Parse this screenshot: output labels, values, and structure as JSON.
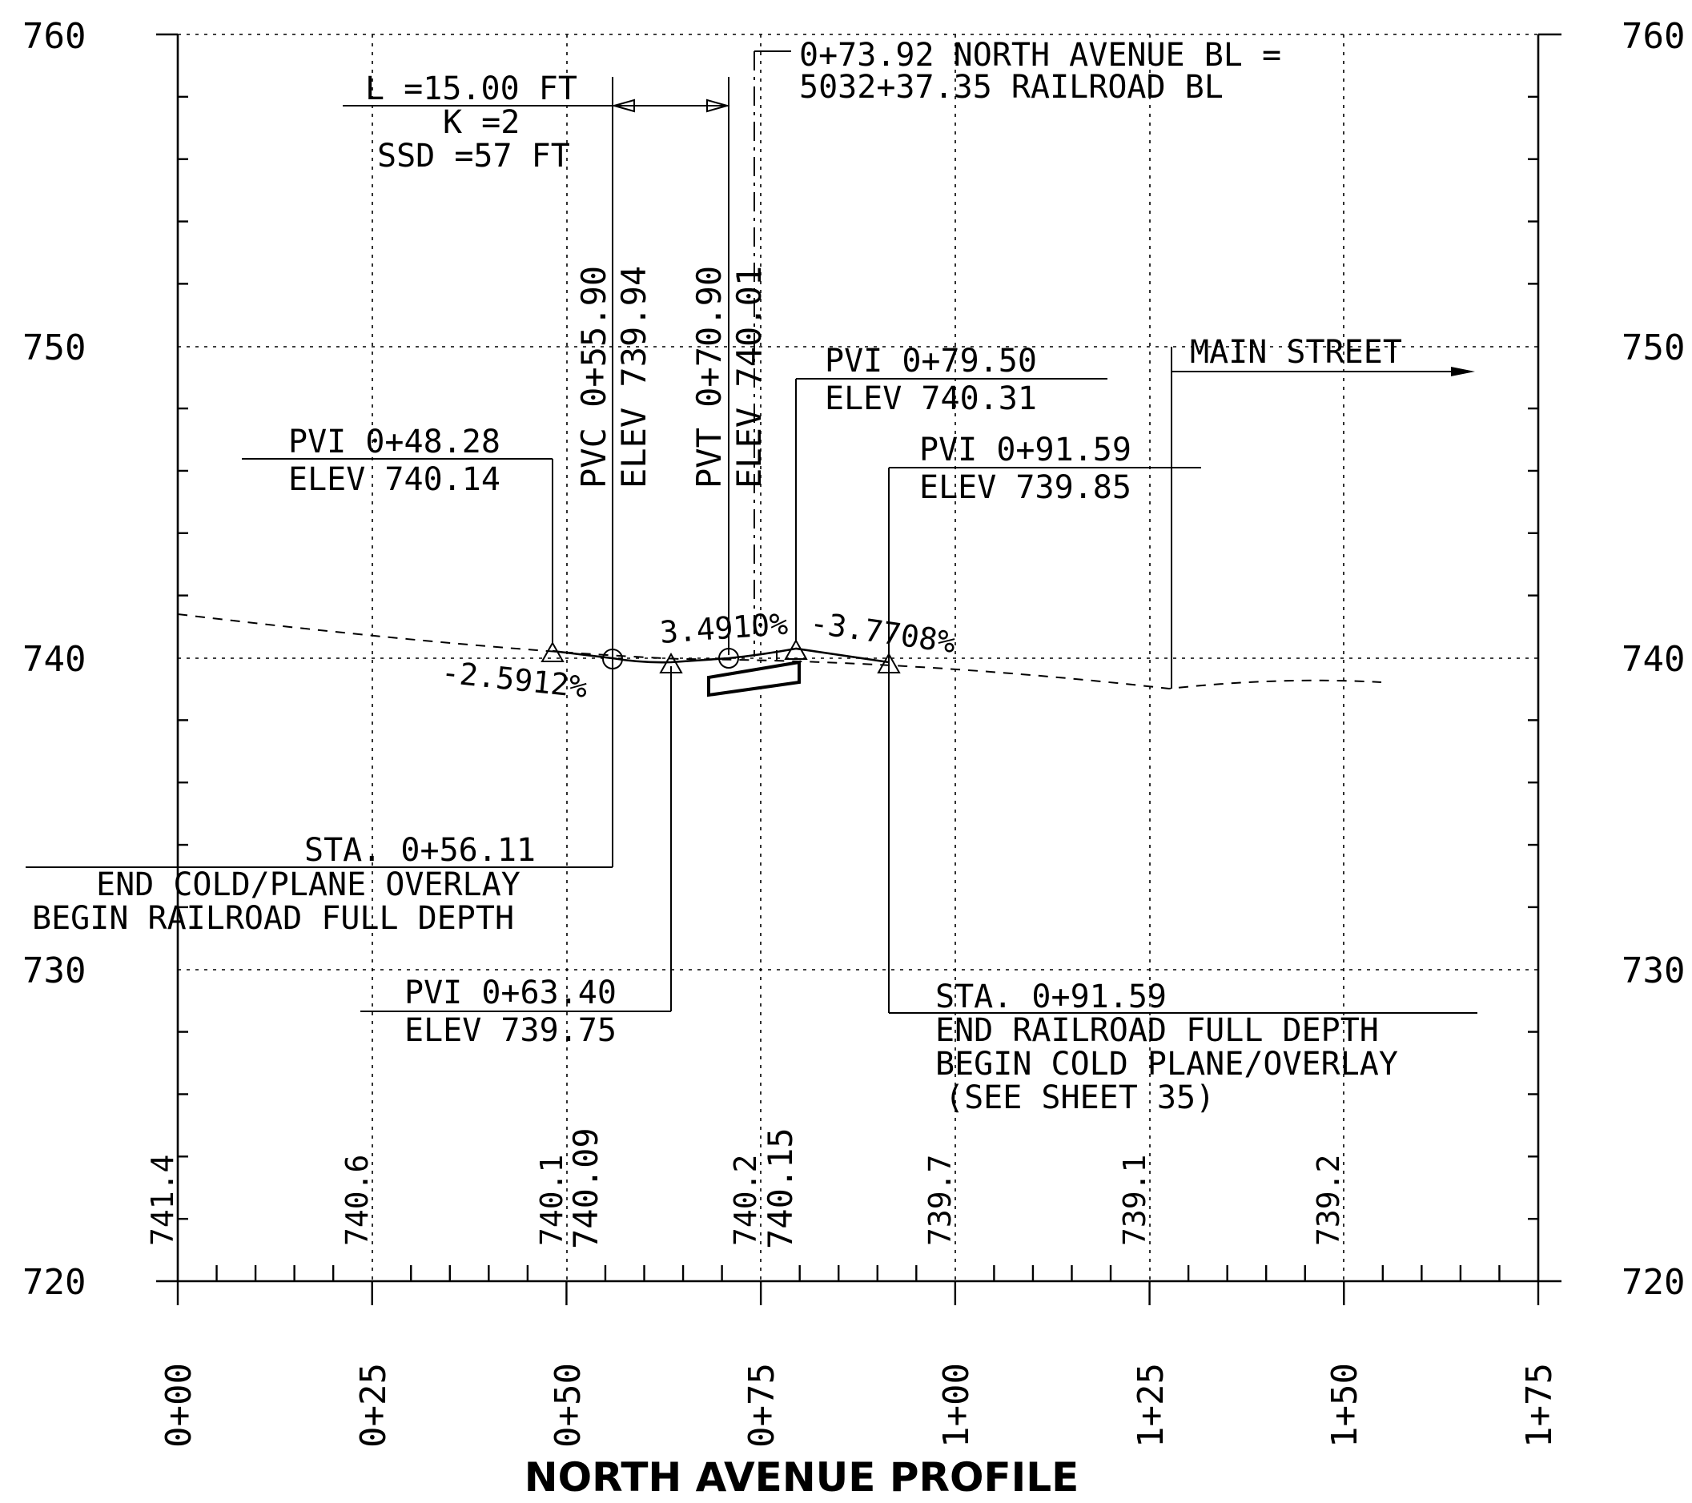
{
  "title": "NORTH AVENUE PROFILE",
  "y_axis": {
    "left_labels": [
      "760",
      "750",
      "740",
      "730",
      "720"
    ],
    "right_labels": [
      "760",
      "750",
      "740",
      "730",
      "720"
    ]
  },
  "x_axis": {
    "station_labels": [
      "0+00",
      "0+25",
      "0+50",
      "0+75",
      "1+00",
      "1+25",
      "1+50",
      "1+75"
    ]
  },
  "existing_ground_elevations": [
    "741.4",
    "740.6",
    "740.1",
    "740.2",
    "739.7",
    "739.1",
    "739.2"
  ],
  "proposed_elevations": [
    "740.09",
    "740.15"
  ],
  "annotations": {
    "vertical_curve": {
      "length": "L =15.00 FT",
      "k": "K =2",
      "ssd": "SSD =57 FT"
    },
    "baseline_equation": {
      "line1": "0+73.92 NORTH AVENUE BL =",
      "line2": "5032+37.35 RAILROAD BL"
    },
    "pvc": {
      "station": "PVC 0+55.90",
      "elev": "ELEV 739.94"
    },
    "pvt": {
      "station": "PVT 0+70.90",
      "elev": "ELEV 740.01"
    },
    "pvi_1": {
      "station": "PVI 0+48.28",
      "elev": "ELEV 740.14"
    },
    "pvi_2": {
      "station": "PVI 0+63.40",
      "elev": "ELEV 739.75"
    },
    "pvi_3": {
      "station": "PVI 0+79.50",
      "elev": "ELEV 740.31"
    },
    "pvi_4": {
      "station": "PVI 0+91.59",
      "elev": "ELEV 739.85"
    },
    "main_street": "MAIN STREET",
    "grades": {
      "g1": "-2.5912%",
      "g2": "3.4910%",
      "g3": "-3.7708%"
    },
    "sta_begin": {
      "station": "STA. 0+56.11",
      "line1": "END COLD/PLANE OVERLAY",
      "line2": "BEGIN RAILROAD FULL DEPTH"
    },
    "sta_end": {
      "station": "STA. 0+91.59",
      "line1": "END RAILROAD FULL DEPTH",
      "line2": "BEGIN COLD PLANE/OVERLAY",
      "line3": "(SEE SHEET 35)"
    }
  }
}
